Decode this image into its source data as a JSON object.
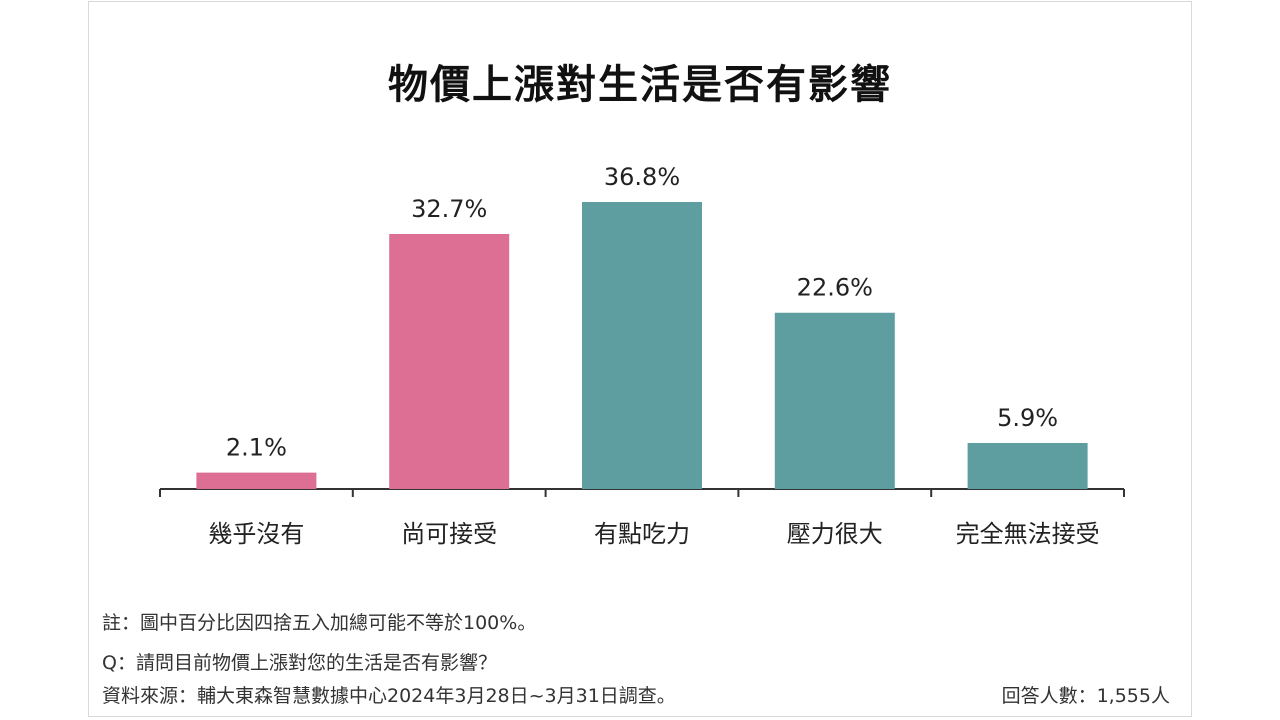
{
  "chart_data": {
    "type": "bar",
    "title": "物價上漲對生活是否有影響",
    "categories": [
      "幾乎沒有",
      "尚可接受",
      "有點吃力",
      "壓力很大",
      "完全無法接受"
    ],
    "values": [
      2.1,
      32.7,
      36.8,
      22.6,
      5.9
    ],
    "value_labels": [
      "2.1%",
      "32.7%",
      "36.8%",
      "22.6%",
      "5.9%"
    ],
    "bar_colors": [
      "#dc6f93",
      "#dc6f93",
      "#5e9ea0",
      "#5e9ea0",
      "#5e9ea0"
    ],
    "ylim": [
      0,
      40
    ],
    "grid": false
  },
  "footer": {
    "note": "註：圖中百分比因四捨五入加總可能不等於100%。",
    "question": "Q：請問目前物價上漲對您的生活是否有影響？",
    "source": "資料來源：輔大東森智慧數據中心2024年3月28日~3月31日調查。",
    "respondents": "回答人數：1,555人"
  }
}
